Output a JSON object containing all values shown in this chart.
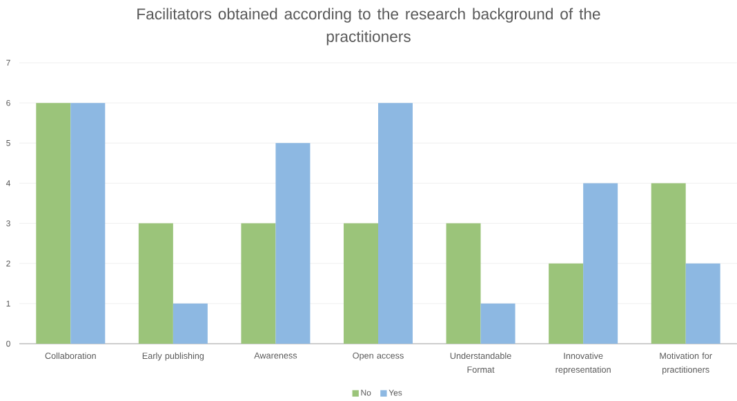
{
  "chart_data": {
    "type": "bar",
    "title": "Facilitators obtained according to the research background of the practitioners",
    "categories": [
      "Collaboration",
      "Early publishing",
      "Awareness",
      "Open access",
      "Understandable Format",
      "Innovative representation",
      "Motivation for practitioners"
    ],
    "series": [
      {
        "name": "No",
        "color": "#9bc47a",
        "values": [
          6,
          3,
          3,
          3,
          3,
          2,
          4
        ]
      },
      {
        "name": "Yes",
        "color": "#8db8e2",
        "values": [
          6,
          1,
          5,
          6,
          1,
          4,
          2
        ]
      }
    ],
    "ylim": [
      0,
      7
    ],
    "yticks": [
      0,
      1,
      2,
      3,
      4,
      5,
      6,
      7
    ],
    "grid": "y",
    "legend": "bottom"
  }
}
